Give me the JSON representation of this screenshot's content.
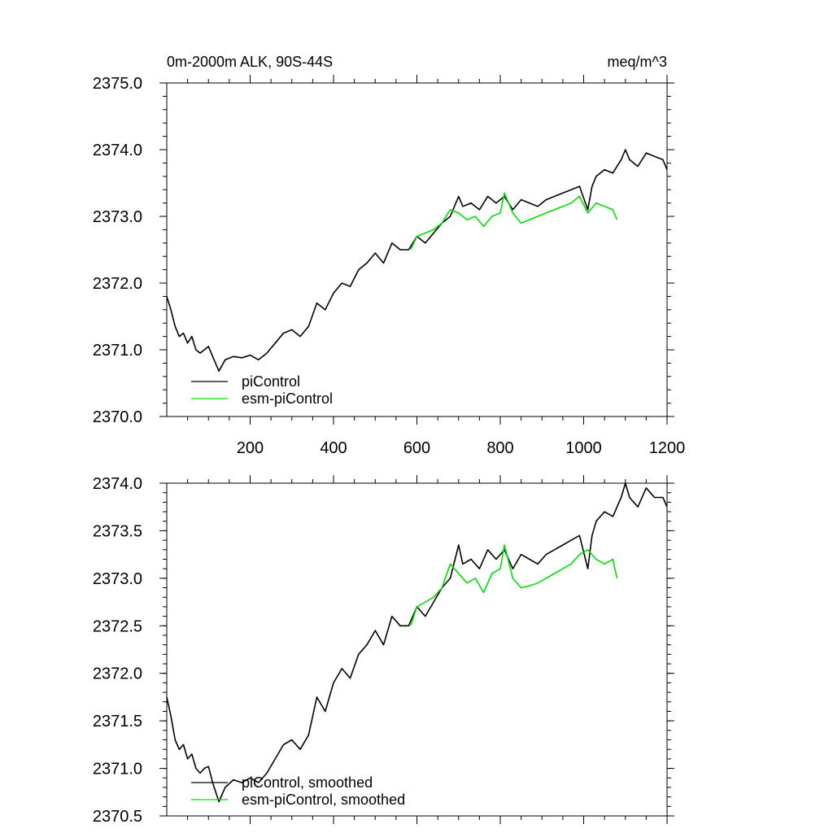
{
  "chart_data": [
    {
      "type": "line",
      "title": "0m-2000m ALK, 90S-44S",
      "units": "meq/m^3",
      "xlabel": "",
      "ylabel": "",
      "xlim": [
        0,
        1200
      ],
      "ylim": [
        2370.0,
        2375.0
      ],
      "x_ticks": [
        200,
        400,
        600,
        800,
        1000,
        1200
      ],
      "x_tick_labels": [
        "200",
        "400",
        "600",
        "800",
        "1000",
        "1200"
      ],
      "y_ticks": [
        2370.0,
        2371.0,
        2372.0,
        2373.0,
        2374.0,
        2375.0
      ],
      "y_tick_labels": [
        "2370.0",
        "2371.0",
        "2372.0",
        "2373.0",
        "2374.0",
        "2375.0"
      ],
      "legend_position": "bottom-left",
      "series": [
        {
          "name": "piControl",
          "color": "#000000",
          "x": [
            0,
            10,
            20,
            30,
            40,
            50,
            60,
            70,
            80,
            90,
            100,
            110,
            125,
            140,
            160,
            180,
            200,
            220,
            240,
            260,
            280,
            300,
            320,
            340,
            360,
            380,
            400,
            420,
            440,
            460,
            480,
            500,
            520,
            540,
            560,
            580,
            600,
            620,
            640,
            660,
            680,
            700,
            710,
            730,
            750,
            770,
            790,
            810,
            830,
            850,
            870,
            890,
            910,
            930,
            950,
            970,
            990,
            1010,
            1020,
            1030,
            1050,
            1070,
            1090,
            1100,
            1110,
            1130,
            1150,
            1170,
            1190,
            1200
          ],
          "y": [
            2371.8,
            2371.6,
            2371.35,
            2371.2,
            2371.25,
            2371.1,
            2371.2,
            2371.0,
            2370.95,
            2371.0,
            2371.05,
            2370.9,
            2370.68,
            2370.85,
            2370.9,
            2370.88,
            2370.92,
            2370.85,
            2370.95,
            2371.1,
            2371.25,
            2371.3,
            2371.2,
            2371.35,
            2371.7,
            2371.6,
            2371.85,
            2372.0,
            2371.95,
            2372.2,
            2372.3,
            2372.45,
            2372.3,
            2372.6,
            2372.5,
            2372.5,
            2372.7,
            2372.6,
            2372.75,
            2372.9,
            2373.0,
            2373.3,
            2373.15,
            2373.2,
            2373.1,
            2373.3,
            2373.2,
            2373.3,
            2373.1,
            2373.25,
            2373.2,
            2373.15,
            2373.25,
            2373.3,
            2373.35,
            2373.4,
            2373.45,
            2373.1,
            2373.45,
            2373.6,
            2373.7,
            2373.65,
            2373.85,
            2374.0,
            2373.85,
            2373.75,
            2373.95,
            2373.9,
            2373.85,
            2373.7
          ]
        },
        {
          "name": "esm-piControl",
          "color": "#00e000",
          "x": [
            585,
            600,
            620,
            640,
            660,
            680,
            700,
            720,
            740,
            760,
            780,
            800,
            810,
            830,
            850,
            870,
            890,
            910,
            930,
            950,
            970,
            990,
            1010,
            1030,
            1050,
            1070,
            1080
          ],
          "y": [
            2372.5,
            2372.7,
            2372.75,
            2372.8,
            2372.9,
            2373.1,
            2373.05,
            2372.95,
            2373.0,
            2372.85,
            2373.0,
            2373.05,
            2373.35,
            2373.05,
            2372.9,
            2372.95,
            2373.0,
            2373.05,
            2373.1,
            2373.15,
            2373.2,
            2373.3,
            2373.05,
            2373.2,
            2373.15,
            2373.1,
            2372.95
          ]
        }
      ]
    },
    {
      "type": "line",
      "title": "",
      "xlabel": "",
      "ylabel": "",
      "xlim": [
        0,
        1200
      ],
      "ylim": [
        2370.5,
        2374.0
      ],
      "x_ticks": [
        200,
        400,
        600,
        800,
        1000,
        1200
      ],
      "y_ticks": [
        2370.5,
        2371.0,
        2371.5,
        2372.0,
        2372.5,
        2373.0,
        2373.5,
        2374.0
      ],
      "y_tick_labels": [
        "2370.5",
        "2371.0",
        "2371.5",
        "2372.0",
        "2372.5",
        "2373.0",
        "2373.5",
        "2374.0"
      ],
      "legend_position": "bottom-left",
      "series": [
        {
          "name": "piControl, smoothed",
          "color": "#000000",
          "x": [
            0,
            10,
            20,
            30,
            40,
            50,
            60,
            70,
            80,
            90,
            100,
            110,
            125,
            140,
            160,
            180,
            200,
            220,
            240,
            260,
            280,
            300,
            320,
            340,
            360,
            380,
            400,
            420,
            440,
            460,
            480,
            500,
            520,
            540,
            560,
            580,
            600,
            620,
            640,
            660,
            680,
            700,
            710,
            730,
            750,
            770,
            790,
            810,
            830,
            850,
            870,
            890,
            910,
            930,
            950,
            970,
            990,
            1010,
            1020,
            1030,
            1050,
            1070,
            1090,
            1100,
            1110,
            1130,
            1150,
            1170,
            1190,
            1200
          ],
          "y": [
            2371.75,
            2371.55,
            2371.3,
            2371.2,
            2371.25,
            2371.1,
            2371.15,
            2371.0,
            2370.95,
            2371.0,
            2371.02,
            2370.85,
            2370.65,
            2370.8,
            2370.88,
            2370.85,
            2370.9,
            2370.85,
            2370.95,
            2371.1,
            2371.25,
            2371.3,
            2371.2,
            2371.35,
            2371.75,
            2371.6,
            2371.9,
            2372.05,
            2371.95,
            2372.2,
            2372.3,
            2372.45,
            2372.3,
            2372.6,
            2372.5,
            2372.5,
            2372.7,
            2372.6,
            2372.75,
            2372.9,
            2373.0,
            2373.35,
            2373.15,
            2373.2,
            2373.1,
            2373.3,
            2373.2,
            2373.3,
            2373.1,
            2373.25,
            2373.2,
            2373.15,
            2373.25,
            2373.3,
            2373.35,
            2373.4,
            2373.45,
            2373.1,
            2373.45,
            2373.6,
            2373.7,
            2373.65,
            2373.85,
            2374.0,
            2373.85,
            2373.75,
            2373.95,
            2373.85,
            2373.85,
            2373.75
          ]
        },
        {
          "name": "esm-piControl, smoothed",
          "color": "#00e000",
          "x": [
            585,
            600,
            620,
            640,
            660,
            680,
            700,
            720,
            740,
            760,
            780,
            800,
            810,
            830,
            850,
            870,
            890,
            910,
            930,
            950,
            970,
            990,
            1010,
            1030,
            1050,
            1070,
            1080
          ],
          "y": [
            2372.5,
            2372.7,
            2372.75,
            2372.8,
            2372.9,
            2373.15,
            2373.05,
            2372.95,
            2373.0,
            2372.85,
            2373.05,
            2373.1,
            2373.35,
            2373.0,
            2372.9,
            2372.92,
            2372.95,
            2373.0,
            2373.05,
            2373.1,
            2373.15,
            2373.25,
            2373.3,
            2373.2,
            2373.15,
            2373.2,
            2373.0
          ]
        }
      ]
    }
  ]
}
